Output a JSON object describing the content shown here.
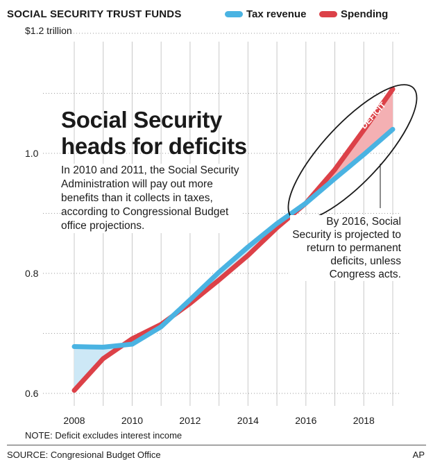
{
  "header": {
    "title": "SOCIAL SECURITY TRUST FUNDS"
  },
  "chart_data": {
    "type": "line",
    "title": "SOCIAL SECURITY TRUST FUNDS",
    "x": [
      2008,
      2009,
      2010,
      2011,
      2012,
      2013,
      2014,
      2015,
      2016,
      2017,
      2018,
      2019
    ],
    "series": [
      {
        "name": "Tax revenue",
        "color": "#4ab3e2",
        "values": [
          0.678,
          0.677,
          0.682,
          0.711,
          0.756,
          0.802,
          0.844,
          0.883,
          0.917,
          0.958,
          0.998,
          1.04
        ]
      },
      {
        "name": "Spending",
        "color": "#dc4148",
        "values": [
          0.605,
          0.658,
          0.691,
          0.715,
          0.75,
          0.789,
          0.83,
          0.876,
          0.917,
          0.973,
          1.039,
          1.107
        ]
      }
    ],
    "xticks": [
      2008,
      2010,
      2012,
      2014,
      2016,
      2018
    ],
    "yticks": [
      {
        "value": 0.6,
        "label": "0.6"
      },
      {
        "value": 0.8,
        "label": "0.8"
      },
      {
        "value": 1.0,
        "label": "1.0"
      },
      {
        "value": 1.2,
        "label": "$1.2 trillion"
      }
    ],
    "ylim": [
      0.58,
      1.2
    ],
    "xlim": [
      2008,
      2019
    ],
    "grid": true,
    "legend": "top-right",
    "deficit_label": "DEFICIT"
  },
  "headline": "Social Security heads for deficits",
  "body": "In 2010 and 2011, the Social Security Administration will pay out more benefits than it collects in taxes, according to Congressional Budget office projections.",
  "annotation": "By 2016, Social Security is projected to return to permanent deficits, unless Congress acts.",
  "note": "NOTE: Deficit excludes interest income",
  "source": "SOURCE: Congresional Budget Office",
  "credit": "AP",
  "colors": {
    "tax": "#4ab3e2",
    "spending": "#dc4148",
    "deficit_fill": "#f4b0b3",
    "surplus_fill": "#cde8f6"
  }
}
